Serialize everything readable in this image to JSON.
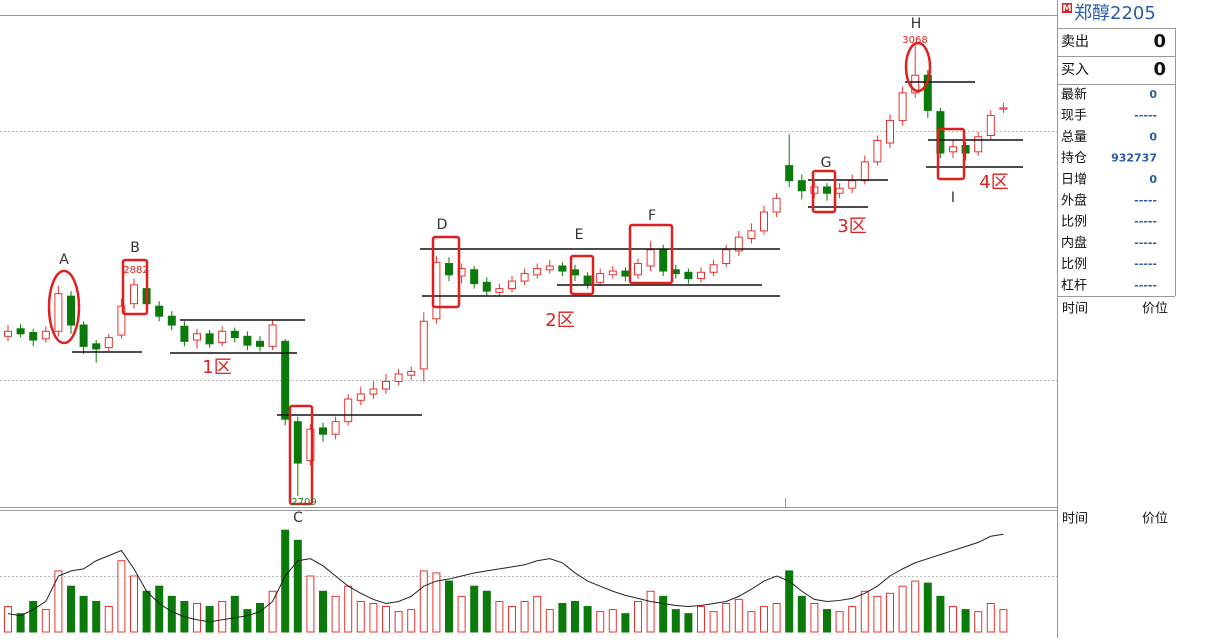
{
  "chart_data": [
    {
      "type": "candlestick",
      "up_color": "#e8322f",
      "down_color": "#0b7a0b",
      "ylim": [
        2700,
        3092
      ],
      "open": [
        2836,
        2842,
        2839,
        2834,
        2840,
        2868,
        2845,
        2830,
        2827,
        2837,
        2862,
        2874,
        2860,
        2852,
        2844,
        2833,
        2838,
        2831,
        2840,
        2836,
        2832,
        2828,
        2832,
        2768,
        2737,
        2763,
        2758,
        2768,
        2785,
        2790,
        2794,
        2800,
        2805,
        2810,
        2850,
        2894,
        2884,
        2889,
        2879,
        2871,
        2874,
        2880,
        2885,
        2889,
        2892,
        2889,
        2884,
        2879,
        2885,
        2888,
        2885,
        2892,
        2905,
        2889,
        2887,
        2882,
        2887,
        2894,
        2904,
        2914,
        2920,
        2935,
        2972,
        2960,
        2950,
        2955,
        2950,
        2954,
        2960,
        2975,
        2990,
        3008,
        3030,
        3044,
        3015,
        2983,
        2988,
        2983,
        2996,
        3017
      ],
      "high": [
        2845,
        2846,
        2842,
        2844,
        2876,
        2872,
        2848,
        2833,
        2838,
        2866,
        2882,
        2878,
        2864,
        2856,
        2848,
        2842,
        2841,
        2844,
        2843,
        2840,
        2836,
        2849,
        2834,
        2772,
        2766,
        2767,
        2772,
        2790,
        2796,
        2800,
        2806,
        2810,
        2812,
        2855,
        2900,
        2899,
        2894,
        2892,
        2883,
        2878,
        2884,
        2890,
        2894,
        2897,
        2895,
        2893,
        2887,
        2890,
        2892,
        2891,
        2898,
        2912,
        2909,
        2893,
        2890,
        2891,
        2897,
        2909,
        2920,
        2926,
        2940,
        2950,
        2997,
        2965,
        2959,
        2958,
        2958,
        2965,
        2980,
        2996,
        3013,
        3035,
        3068,
        3048,
        3018,
        2992,
        2991,
        2999,
        3016,
        3022
      ],
      "low": [
        2832,
        2835,
        2828,
        2831,
        2836,
        2838,
        2822,
        2815,
        2824,
        2834,
        2858,
        2858,
        2848,
        2841,
        2828,
        2826,
        2827,
        2828,
        2831,
        2825,
        2824,
        2825,
        2765,
        2709,
        2733,
        2752,
        2754,
        2765,
        2781,
        2786,
        2790,
        2797,
        2801,
        2800,
        2846,
        2880,
        2878,
        2874,
        2868,
        2868,
        2871,
        2877,
        2882,
        2886,
        2884,
        2880,
        2874,
        2876,
        2882,
        2880,
        2882,
        2888,
        2884,
        2882,
        2878,
        2879,
        2884,
        2891,
        2900,
        2910,
        2917,
        2931,
        2955,
        2945,
        2946,
        2944,
        2946,
        2950,
        2957,
        2972,
        2986,
        3004,
        3026,
        3010,
        2978,
        2978,
        2976,
        2980,
        2993,
        3014
      ],
      "close": [
        2840,
        2838,
        2833,
        2840,
        2870,
        2845,
        2828,
        2826,
        2835,
        2860,
        2877,
        2862,
        2852,
        2845,
        2832,
        2838,
        2830,
        2840,
        2835,
        2829,
        2828,
        2845,
        2770,
        2735,
        2762,
        2758,
        2768,
        2786,
        2790,
        2794,
        2800,
        2806,
        2808,
        2848,
        2895,
        2885,
        2890,
        2878,
        2872,
        2874,
        2880,
        2886,
        2890,
        2892,
        2888,
        2885,
        2878,
        2886,
        2888,
        2884,
        2894,
        2905,
        2888,
        2886,
        2882,
        2887,
        2893,
        2905,
        2915,
        2920,
        2935,
        2946,
        2960,
        2952,
        2955,
        2950,
        2954,
        2960,
        2975,
        2992,
        3008,
        3030,
        3044,
        3016,
        2982,
        2987,
        2982,
        2995,
        3012,
        3018
      ],
      "annotations": [
        "A",
        "B",
        "C",
        "D",
        "E",
        "F",
        "G",
        "H",
        "I"
      ],
      "zones": [
        "1区",
        "2区",
        "3区",
        "4区"
      ]
    },
    {
      "type": "bar",
      "ylim": [
        0,
        110
      ],
      "y2lim": [
        0,
        110
      ],
      "values": [
        25,
        18,
        30,
        22,
        60,
        45,
        35,
        30,
        25,
        70,
        55,
        40,
        45,
        35,
        30,
        28,
        25,
        30,
        35,
        22,
        28,
        40,
        100,
        90,
        55,
        40,
        35,
        45,
        30,
        28,
        25,
        20,
        22,
        60,
        58,
        50,
        35,
        45,
        40,
        30,
        25,
        30,
        35,
        22,
        28,
        30,
        25,
        20,
        22,
        18,
        30,
        40,
        35,
        22,
        18,
        25,
        20,
        28,
        32,
        20,
        25,
        28,
        60,
        35,
        28,
        22,
        20,
        25,
        40,
        35,
        38,
        45,
        50,
        48,
        35,
        25,
        22,
        20,
        28,
        22
      ],
      "series": [
        {
          "color": "#222222",
          "axis": "y2",
          "values": [
            18,
            16,
            22,
            30,
            55,
            60,
            62,
            70,
            75,
            80,
            62,
            40,
            28,
            20,
            15,
            12,
            10,
            12,
            14,
            16,
            20,
            30,
            55,
            70,
            72,
            65,
            55,
            45,
            38,
            32,
            28,
            30,
            35,
            45,
            50,
            52,
            55,
            58,
            60,
            62,
            64,
            66,
            70,
            72,
            68,
            58,
            50,
            45,
            40,
            36,
            33,
            30,
            28,
            26,
            25,
            26,
            28,
            30,
            35,
            42,
            50,
            55,
            50,
            40,
            32,
            30,
            31,
            33,
            38,
            45,
            55,
            62,
            68,
            72,
            76,
            80,
            84,
            88,
            94,
            96
          ]
        }
      ]
    }
  ],
  "panel": {
    "badge": "M",
    "title": "郑醇2205",
    "trade": [
      {
        "label": "卖出",
        "value": 0
      },
      {
        "label": "买入",
        "value": 0
      }
    ],
    "quote": [
      {
        "label": "最新",
        "value": 0
      },
      {
        "label": "现手",
        "value": "-----"
      },
      {
        "label": "总量",
        "value": 0
      },
      {
        "label": "持仓",
        "value": 932737
      },
      {
        "label": "日增",
        "value": 0
      },
      {
        "label": "外盘",
        "value": "-----"
      },
      {
        "label": "比例",
        "value": "-----"
      },
      {
        "label": "内盘",
        "value": "-----"
      },
      {
        "label": "比例",
        "value": "-----"
      },
      {
        "label": "杠杆",
        "value": "-----"
      }
    ],
    "headers": [
      [
        "时间",
        "价位"
      ],
      [
        "时间",
        "价位"
      ]
    ]
  }
}
